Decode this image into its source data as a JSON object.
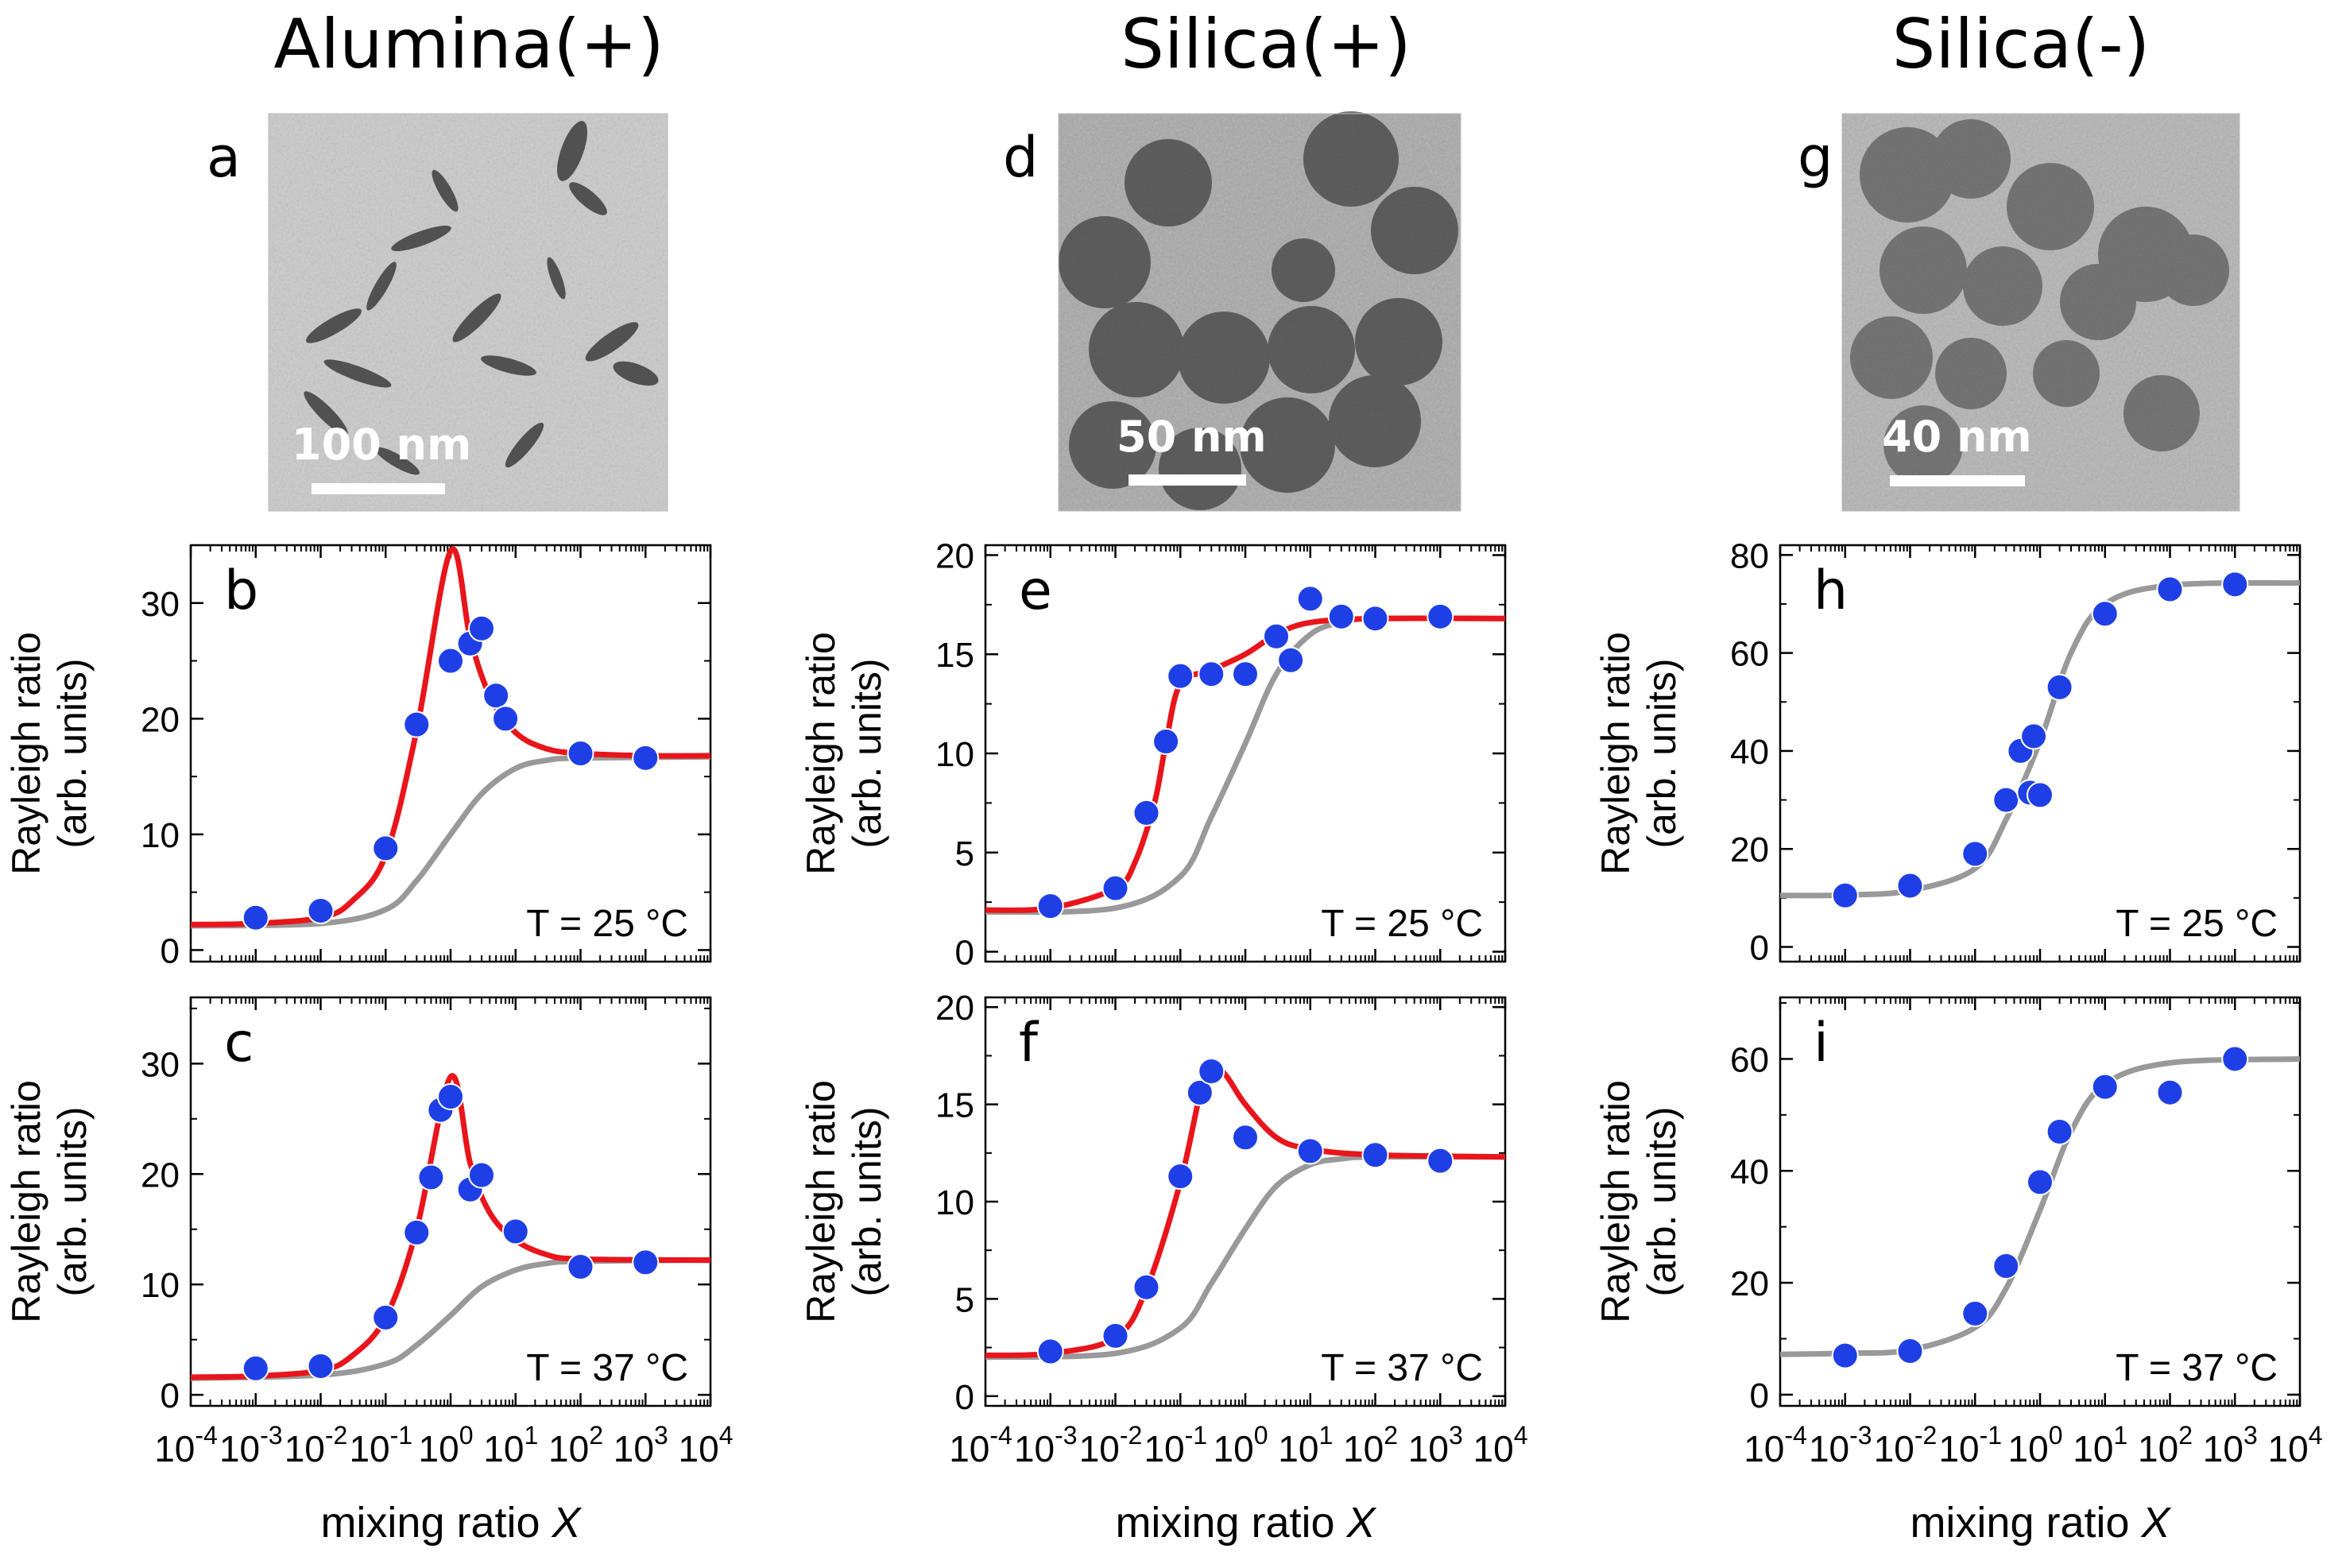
{
  "columns": [
    {
      "title": "Alumina(+)",
      "tem_letter": "a",
      "scale_label": "100 nm",
      "image_desc": "alumina nanoparticle micrograph"
    },
    {
      "title": "Silica(+)",
      "tem_letter": "d",
      "scale_label": "50 nm",
      "image_desc": "silica nanoparticle micrograph"
    },
    {
      "title": "Silica(-)",
      "tem_letter": "g",
      "scale_label": "40 nm",
      "image_desc": "silica nanoparticle micrograph"
    }
  ],
  "colors": {
    "points": "#1f3fe6",
    "red_curve": "#e8151b",
    "gray_curve": "#999999",
    "axes": "#000000"
  },
  "chart_data": [
    {
      "type": "scatter",
      "panel": "b",
      "temperature": "T = 25 °C",
      "ylabel": [
        "Rayleigh ratio",
        "(arb. units)"
      ],
      "xlabel": "mixing ratio X",
      "xscale": "log",
      "xlim": [
        0.0001,
        10000
      ],
      "ylim": [
        -1,
        35
      ],
      "yticks": [
        0,
        10,
        20,
        30
      ],
      "show_xtick_labels": false,
      "points": [
        [
          0.001,
          2.8
        ],
        [
          0.01,
          3.4
        ],
        [
          0.1,
          8.8
        ],
        [
          0.3,
          19.5
        ],
        [
          1.0,
          25
        ],
        [
          2.0,
          26.5
        ],
        [
          3.0,
          27.8
        ],
        [
          5.0,
          22
        ],
        [
          7.0,
          20
        ],
        [
          100,
          17
        ],
        [
          1000,
          16.6
        ]
      ],
      "red_curve": [
        [
          0.0001,
          2.2
        ],
        [
          0.001,
          2.3
        ],
        [
          0.01,
          2.8
        ],
        [
          0.03,
          4.2
        ],
        [
          0.1,
          8.2
        ],
        [
          0.3,
          19
        ],
        [
          1.0,
          34.5
        ],
        [
          2.0,
          27
        ],
        [
          4.0,
          22
        ],
        [
          10,
          18.8
        ],
        [
          30,
          17.4
        ],
        [
          100,
          17
        ],
        [
          1000,
          16.8
        ],
        [
          10000,
          16.8
        ]
      ],
      "gray_curve": [
        [
          0.0001,
          2.1
        ],
        [
          0.01,
          2.3
        ],
        [
          0.1,
          3.5
        ],
        [
          0.3,
          6
        ],
        [
          1.0,
          10
        ],
        [
          3.0,
          13.5
        ],
        [
          10,
          15.7
        ],
        [
          30,
          16.4
        ],
        [
          100,
          16.6
        ],
        [
          10000,
          16.7
        ]
      ]
    },
    {
      "type": "scatter",
      "panel": "c",
      "temperature": "T = 37 °C",
      "ylabel": [
        "Rayleigh ratio",
        "(arb. units)"
      ],
      "xlabel": "mixing ratio X",
      "xscale": "log",
      "xlim": [
        0.0001,
        10000
      ],
      "ylim": [
        -1,
        36
      ],
      "yticks": [
        0,
        10,
        20,
        30
      ],
      "show_xtick_labels": true,
      "points": [
        [
          0.001,
          2.4
        ],
        [
          0.01,
          2.6
        ],
        [
          0.1,
          7
        ],
        [
          0.3,
          14.7
        ],
        [
          0.5,
          19.7
        ],
        [
          0.7,
          25.8
        ],
        [
          1.0,
          27
        ],
        [
          2.0,
          18.6
        ],
        [
          3.0,
          19.9
        ],
        [
          10,
          14.8
        ],
        [
          100,
          11.6
        ],
        [
          1000,
          12
        ]
      ],
      "red_curve": [
        [
          0.0001,
          1.6
        ],
        [
          0.001,
          1.7
        ],
        [
          0.01,
          2.2
        ],
        [
          0.03,
          3.5
        ],
        [
          0.1,
          7
        ],
        [
          0.3,
          15
        ],
        [
          1.0,
          28.8
        ],
        [
          2.0,
          21
        ],
        [
          4.0,
          16.5
        ],
        [
          10,
          14
        ],
        [
          30,
          12.7
        ],
        [
          100,
          12.3
        ],
        [
          10000,
          12.2
        ]
      ],
      "gray_curve": [
        [
          0.0001,
          1.5
        ],
        [
          0.01,
          1.8
        ],
        [
          0.1,
          2.8
        ],
        [
          0.3,
          4.5
        ],
        [
          1.0,
          7.2
        ],
        [
          3.0,
          9.8
        ],
        [
          10,
          11.3
        ],
        [
          30,
          11.9
        ],
        [
          100,
          12.1
        ],
        [
          10000,
          12.2
        ]
      ]
    },
    {
      "type": "scatter",
      "panel": "e",
      "temperature": "T = 25 °C",
      "ylabel": [
        "Rayleigh ratio",
        "(arb. units)"
      ],
      "xlabel": "mixing ratio X",
      "xscale": "log",
      "xlim": [
        0.0001,
        10000
      ],
      "ylim": [
        -0.5,
        20.5
      ],
      "yticks": [
        0,
        5,
        10,
        15,
        20
      ],
      "show_xtick_labels": false,
      "points": [
        [
          0.001,
          2.3
        ],
        [
          0.01,
          3.2
        ],
        [
          0.03,
          7
        ],
        [
          0.06,
          10.6
        ],
        [
          0.1,
          13.9
        ],
        [
          0.3,
          14
        ],
        [
          1.0,
          14
        ],
        [
          3.0,
          15.9
        ],
        [
          5.0,
          14.7
        ],
        [
          10,
          17.8
        ],
        [
          30,
          16.9
        ],
        [
          100,
          16.8
        ],
        [
          1000,
          16.9
        ]
      ],
      "red_curve": [
        [
          0.0001,
          2.1
        ],
        [
          0.001,
          2.2
        ],
        [
          0.01,
          3.2
        ],
        [
          0.02,
          4.5
        ],
        [
          0.04,
          7.5
        ],
        [
          0.06,
          10.5
        ],
        [
          0.1,
          13.5
        ],
        [
          0.3,
          14.2
        ],
        [
          1.0,
          15
        ],
        [
          3.0,
          16
        ],
        [
          10,
          16.6
        ],
        [
          100,
          16.8
        ],
        [
          10000,
          16.8
        ]
      ],
      "gray_curve": [
        [
          0.0001,
          2.0
        ],
        [
          0.01,
          2.2
        ],
        [
          0.1,
          3.8
        ],
        [
          0.3,
          6.8
        ],
        [
          1.0,
          10.5
        ],
        [
          3.0,
          14
        ],
        [
          10,
          16
        ],
        [
          30,
          16.6
        ],
        [
          100,
          16.8
        ],
        [
          10000,
          16.8
        ]
      ]
    },
    {
      "type": "scatter",
      "panel": "f",
      "temperature": "T = 37 °C",
      "ylabel": [
        "Rayleigh ratio",
        "(arb. units)"
      ],
      "xlabel": "mixing ratio X",
      "xscale": "log",
      "xlim": [
        0.0001,
        10000
      ],
      "ylim": [
        -0.5,
        20.5
      ],
      "yticks": [
        0,
        5,
        10,
        15,
        20
      ],
      "show_xtick_labels": true,
      "points": [
        [
          0.001,
          2.3
        ],
        [
          0.01,
          3.1
        ],
        [
          0.03,
          5.6
        ],
        [
          0.1,
          11.3
        ],
        [
          0.2,
          15.6
        ],
        [
          0.3,
          16.7
        ],
        [
          1.0,
          13.3
        ],
        [
          10,
          12.6
        ],
        [
          100,
          12.4
        ],
        [
          1000,
          12.1
        ]
      ],
      "red_curve": [
        [
          0.0001,
          2.1
        ],
        [
          0.001,
          2.2
        ],
        [
          0.01,
          3.0
        ],
        [
          0.03,
          5.5
        ],
        [
          0.1,
          11
        ],
        [
          0.2,
          15.5
        ],
        [
          0.3,
          17
        ],
        [
          0.5,
          16.5
        ],
        [
          1.0,
          15
        ],
        [
          3.0,
          13.3
        ],
        [
          10,
          12.7
        ],
        [
          100,
          12.4
        ],
        [
          10000,
          12.3
        ]
      ],
      "gray_curve": [
        [
          0.0001,
          2.0
        ],
        [
          0.01,
          2.2
        ],
        [
          0.1,
          3.5
        ],
        [
          0.3,
          5.8
        ],
        [
          1.0,
          8.6
        ],
        [
          3.0,
          10.8
        ],
        [
          10,
          11.9
        ],
        [
          30,
          12.2
        ],
        [
          100,
          12.3
        ],
        [
          10000,
          12.3
        ]
      ]
    },
    {
      "type": "scatter",
      "panel": "h",
      "temperature": "T = 25 °C",
      "ylabel": [
        "Rayleigh ratio",
        "(arb. units)"
      ],
      "xlabel": "mixing ratio X",
      "xscale": "log",
      "xlim": [
        0.0001,
        10000
      ],
      "ylim": [
        -3,
        82
      ],
      "yticks": [
        0,
        20,
        40,
        60,
        80
      ],
      "show_xtick_labels": false,
      "points": [
        [
          0.001,
          10.5
        ],
        [
          0.01,
          12.5
        ],
        [
          0.1,
          19
        ],
        [
          0.3,
          30
        ],
        [
          0.5,
          40
        ],
        [
          0.7,
          31.5
        ],
        [
          0.8,
          43
        ],
        [
          1.0,
          31
        ],
        [
          2.0,
          53
        ],
        [
          10,
          68
        ],
        [
          100,
          73
        ],
        [
          1000,
          74
        ]
      ],
      "red_curve": null,
      "gray_curve": [
        [
          0.0001,
          10.5
        ],
        [
          0.001,
          10.6
        ],
        [
          0.01,
          11.5
        ],
        [
          0.1,
          16
        ],
        [
          0.3,
          26
        ],
        [
          1.0,
          42
        ],
        [
          3.0,
          60
        ],
        [
          10,
          70
        ],
        [
          100,
          73.8
        ],
        [
          10000,
          74.3
        ]
      ]
    },
    {
      "type": "scatter",
      "panel": "i",
      "temperature": "T = 37 °C",
      "ylabel": [
        "Rayleigh ratio",
        "(arb. units)"
      ],
      "xlabel": "mixing ratio X",
      "xscale": "log",
      "xlim": [
        0.0001,
        10000
      ],
      "ylim": [
        -2,
        71
      ],
      "yticks": [
        0,
        20,
        40,
        60
      ],
      "show_xtick_labels": true,
      "points": [
        [
          0.001,
          7
        ],
        [
          0.01,
          7.8
        ],
        [
          0.1,
          14.5
        ],
        [
          0.3,
          23
        ],
        [
          1.0,
          38
        ],
        [
          2.0,
          47
        ],
        [
          10,
          55
        ],
        [
          100,
          54
        ],
        [
          1000,
          60
        ]
      ],
      "red_curve": null,
      "gray_curve": [
        [
          0.0001,
          7.2
        ],
        [
          0.001,
          7.4
        ],
        [
          0.01,
          8
        ],
        [
          0.1,
          12
        ],
        [
          0.3,
          19
        ],
        [
          1.0,
          33
        ],
        [
          3.0,
          47
        ],
        [
          10,
          55.5
        ],
        [
          100,
          59.3
        ],
        [
          10000,
          60
        ]
      ]
    }
  ]
}
